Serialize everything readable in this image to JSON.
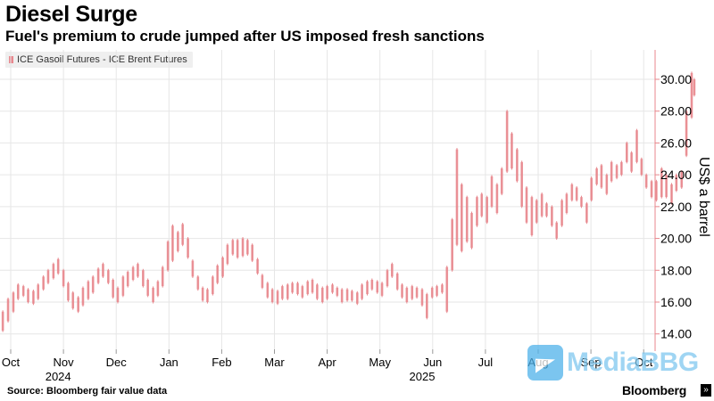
{
  "header": {
    "title": "Diesel Surge",
    "subtitle": "Fuel's premium to crude jumped after US imposed fresh sanctions"
  },
  "legend": {
    "series_label": "ICE Gasoil Futures - ICE Brent Futures",
    "swatch_color": "#e8878d"
  },
  "footer": {
    "source": "Source: Bloomberg fair value data",
    "brand": "Bloomberg",
    "brand_mark": "»"
  },
  "watermark": {
    "text": "MediaBBG"
  },
  "chart_data": {
    "type": "candlestick",
    "title": "Diesel Surge",
    "subtitle": "Fuel's premium to crude jumped after US imposed fresh sanctions",
    "series_name": "ICE Gasoil Futures - ICE Brent Futures",
    "ylabel": "US$ a barrel",
    "ylim": [
      13,
      31
    ],
    "yticks": [
      14,
      16,
      18,
      20,
      22,
      24,
      26,
      28,
      30
    ],
    "ytick_labels": [
      "14.00",
      "16.00",
      "18.00",
      "20.00",
      "22.00",
      "24.00",
      "26.00",
      "28.00",
      "30.00"
    ],
    "x_months": [
      "Oct",
      "Nov",
      "Dec",
      "Jan",
      "Feb",
      "Mar",
      "Apr",
      "May",
      "Jun",
      "Jul",
      "Aug",
      "Sep",
      "Oct"
    ],
    "x_month_index": [
      0,
      1,
      2,
      3,
      4,
      5,
      6,
      7,
      8,
      9,
      10,
      11,
      12
    ],
    "x_year_labels": [
      {
        "label": "2024",
        "month_index": 0.9
      },
      {
        "label": "2025",
        "month_index": 7.8
      }
    ],
    "x_range": [
      0,
      12.35
    ],
    "grid": true,
    "colors": {
      "candle": "#e8878d",
      "grid": "#e6e6e6",
      "axis_line": "#e8878d"
    },
    "points": [
      [
        -0.15,
        14.2,
        15.4
      ],
      [
        -0.05,
        14.8,
        16.2
      ],
      [
        0.05,
        15.4,
        16.6
      ],
      [
        0.14,
        16.2,
        17.1
      ],
      [
        0.24,
        16.4,
        17.0
      ],
      [
        0.33,
        16.0,
        16.8
      ],
      [
        0.43,
        15.9,
        16.7
      ],
      [
        0.52,
        16.2,
        17.1
      ],
      [
        0.62,
        16.8,
        17.6
      ],
      [
        0.71,
        17.2,
        18.0
      ],
      [
        0.81,
        17.5,
        18.4
      ],
      [
        0.9,
        17.8,
        18.7
      ],
      [
        1.0,
        17.0,
        18.0
      ],
      [
        1.09,
        16.1,
        17.2
      ],
      [
        1.18,
        15.6,
        16.6
      ],
      [
        1.28,
        15.4,
        16.3
      ],
      [
        1.37,
        15.8,
        16.9
      ],
      [
        1.47,
        16.2,
        17.3
      ],
      [
        1.56,
        16.6,
        17.6
      ],
      [
        1.66,
        17.2,
        18.1
      ],
      [
        1.75,
        17.6,
        18.4
      ],
      [
        1.85,
        17.2,
        18.0
      ],
      [
        1.94,
        16.3,
        17.4
      ],
      [
        2.03,
        16.0,
        16.9
      ],
      [
        2.13,
        16.4,
        17.6
      ],
      [
        2.22,
        17.0,
        17.9
      ],
      [
        2.32,
        17.4,
        18.2
      ],
      [
        2.41,
        17.6,
        18.4
      ],
      [
        2.51,
        17.0,
        18.0
      ],
      [
        2.6,
        16.4,
        17.4
      ],
      [
        2.7,
        16.0,
        16.9
      ],
      [
        2.79,
        16.4,
        17.3
      ],
      [
        2.88,
        17.0,
        18.2
      ],
      [
        2.98,
        18.0,
        19.8
      ],
      [
        3.07,
        18.6,
        20.8
      ],
      [
        3.17,
        19.2,
        20.4
      ],
      [
        3.26,
        19.6,
        20.9
      ],
      [
        3.36,
        18.8,
        20.0
      ],
      [
        3.45,
        17.6,
        18.6
      ],
      [
        3.55,
        16.8,
        17.6
      ],
      [
        3.64,
        16.1,
        16.9
      ],
      [
        3.73,
        16.0,
        16.8
      ],
      [
        3.83,
        16.5,
        17.6
      ],
      [
        3.92,
        17.2,
        18.3
      ],
      [
        4.02,
        17.6,
        18.8
      ],
      [
        4.11,
        18.4,
        19.6
      ],
      [
        4.21,
        19.0,
        19.9
      ],
      [
        4.3,
        18.8,
        19.9
      ],
      [
        4.4,
        18.9,
        20.0
      ],
      [
        4.49,
        19.0,
        19.9
      ],
      [
        4.58,
        18.6,
        19.6
      ],
      [
        4.68,
        17.8,
        18.7
      ],
      [
        4.77,
        16.9,
        17.7
      ],
      [
        4.87,
        16.3,
        17.2
      ],
      [
        4.96,
        16.0,
        16.8
      ],
      [
        5.06,
        15.9,
        16.7
      ],
      [
        5.15,
        16.2,
        17.0
      ],
      [
        5.25,
        16.2,
        17.1
      ],
      [
        5.34,
        16.6,
        17.2
      ],
      [
        5.44,
        16.5,
        17.2
      ],
      [
        5.53,
        16.3,
        17.0
      ],
      [
        5.63,
        16.5,
        17.3
      ],
      [
        5.72,
        16.6,
        17.4
      ],
      [
        5.81,
        16.2,
        17.1
      ],
      [
        5.91,
        16.0,
        16.9
      ],
      [
        6.0,
        16.2,
        17.0
      ],
      [
        6.1,
        16.6,
        17.1
      ],
      [
        6.19,
        16.4,
        16.9
      ],
      [
        6.28,
        16.0,
        16.8
      ],
      [
        6.38,
        16.1,
        16.8
      ],
      [
        6.47,
        16.1,
        16.7
      ],
      [
        6.57,
        15.9,
        16.6
      ],
      [
        6.66,
        16.2,
        17.1
      ],
      [
        6.76,
        16.5,
        17.3
      ],
      [
        6.85,
        16.8,
        17.4
      ],
      [
        6.95,
        16.6,
        17.3
      ],
      [
        7.04,
        16.4,
        17.2
      ],
      [
        7.14,
        17.0,
        18.0
      ],
      [
        7.23,
        17.6,
        18.4
      ],
      [
        7.33,
        16.8,
        17.8
      ],
      [
        7.42,
        16.3,
        17.1
      ],
      [
        7.51,
        16.0,
        16.9
      ],
      [
        7.61,
        16.2,
        17.0
      ],
      [
        7.7,
        16.3,
        16.9
      ],
      [
        7.8,
        15.8,
        16.8
      ],
      [
        7.89,
        15.0,
        16.5
      ],
      [
        7.99,
        16.3,
        16.9
      ],
      [
        8.08,
        16.4,
        17.0
      ],
      [
        8.18,
        16.6,
        17.1
      ],
      [
        8.27,
        15.4,
        18.2
      ],
      [
        8.37,
        18.0,
        21.2
      ],
      [
        8.46,
        19.6,
        25.6
      ],
      [
        8.55,
        19.2,
        23.4
      ],
      [
        8.65,
        19.8,
        22.6
      ],
      [
        8.74,
        19.4,
        21.6
      ],
      [
        8.84,
        20.8,
        22.6
      ],
      [
        8.93,
        21.4,
        22.8
      ],
      [
        9.03,
        21.0,
        22.6
      ],
      [
        9.12,
        22.0,
        23.9
      ],
      [
        9.22,
        21.6,
        23.4
      ],
      [
        9.31,
        22.8,
        24.4
      ],
      [
        9.41,
        24.2,
        28.0
      ],
      [
        9.5,
        24.4,
        26.6
      ],
      [
        9.6,
        23.6,
        25.6
      ],
      [
        9.69,
        22.0,
        24.8
      ],
      [
        9.78,
        21.0,
        23.2
      ],
      [
        9.88,
        20.2,
        22.6
      ],
      [
        9.97,
        21.0,
        22.4
      ],
      [
        10.07,
        21.4,
        22.8
      ],
      [
        10.16,
        21.4,
        22.2
      ],
      [
        10.26,
        20.8,
        22.0
      ],
      [
        10.35,
        20.0,
        21.0
      ],
      [
        10.45,
        20.8,
        22.4
      ],
      [
        10.54,
        21.6,
        22.8
      ],
      [
        10.64,
        22.4,
        23.4
      ],
      [
        10.73,
        22.4,
        23.2
      ],
      [
        10.82,
        22.0,
        22.6
      ],
      [
        10.92,
        21.0,
        22.2
      ],
      [
        11.01,
        22.4,
        23.8
      ],
      [
        11.11,
        23.4,
        24.4
      ],
      [
        11.2,
        23.2,
        24.6
      ],
      [
        11.3,
        22.8,
        24.0
      ],
      [
        11.39,
        23.6,
        24.8
      ],
      [
        11.49,
        23.8,
        24.6
      ],
      [
        11.58,
        24.0,
        24.8
      ],
      [
        11.68,
        24.8,
        26.0
      ],
      [
        11.77,
        24.2,
        25.4
      ],
      [
        11.87,
        24.8,
        26.8
      ],
      [
        11.96,
        24.0,
        25.0
      ],
      [
        12.05,
        23.2,
        24.0
      ],
      [
        12.15,
        22.6,
        23.6
      ],
      [
        12.24,
        22.4,
        23.6
      ],
      [
        12.34,
        22.6,
        24.4
      ],
      [
        12.43,
        22.6,
        24.0
      ],
      [
        12.53,
        22.2,
        23.4
      ],
      [
        12.62,
        23.0,
        24.0
      ],
      [
        12.72,
        23.2,
        24.2
      ],
      [
        12.81,
        25.2,
        28.0
      ],
      [
        12.91,
        27.6,
        30.4
      ],
      [
        12.96,
        29.0,
        30.0
      ]
    ]
  }
}
